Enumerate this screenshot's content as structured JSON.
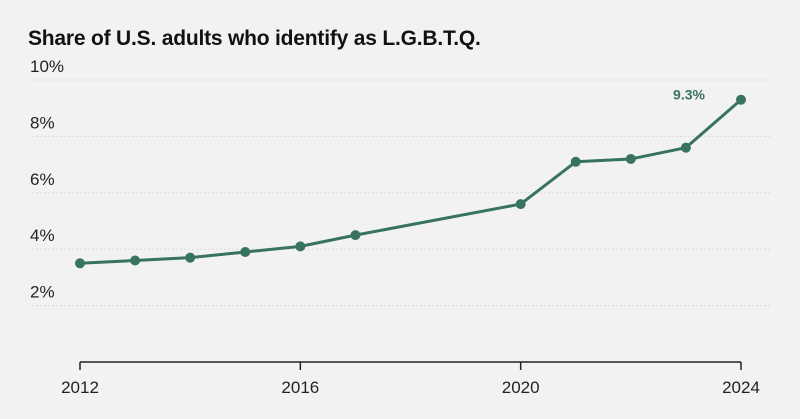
{
  "title": "Share of U.S. adults who identify as L.G.B.T.Q.",
  "colors": {
    "line": "#37735f",
    "grid": "#dcdcdc",
    "axis": "#222222",
    "background": "#f2f2f2"
  },
  "chart_data": {
    "type": "line",
    "title": "Share of U.S. adults who identify as L.G.B.T.Q.",
    "xlabel": "",
    "ylabel": "",
    "xlim": [
      2012,
      2024
    ],
    "ylim": [
      0,
      10
    ],
    "y_ticks": [
      2,
      4,
      6,
      8,
      10
    ],
    "y_tick_labels": [
      "2%",
      "4%",
      "6%",
      "8%",
      "10%"
    ],
    "x_ticks": [
      2012,
      2016,
      2020,
      2024
    ],
    "x_tick_labels": [
      "2012",
      "2016",
      "2020",
      "2024"
    ],
    "grid": true,
    "series": [
      {
        "x": [
          2012,
          2013,
          2014,
          2015,
          2016,
          2017,
          2020,
          2021,
          2022,
          2023,
          2024
        ],
        "y": [
          3.5,
          3.6,
          3.7,
          3.9,
          4.1,
          4.5,
          5.6,
          7.1,
          7.2,
          7.6,
          9.3
        ]
      }
    ],
    "annotations": [
      {
        "x": 2024,
        "y": 9.3,
        "text": "9.3%"
      }
    ]
  }
}
